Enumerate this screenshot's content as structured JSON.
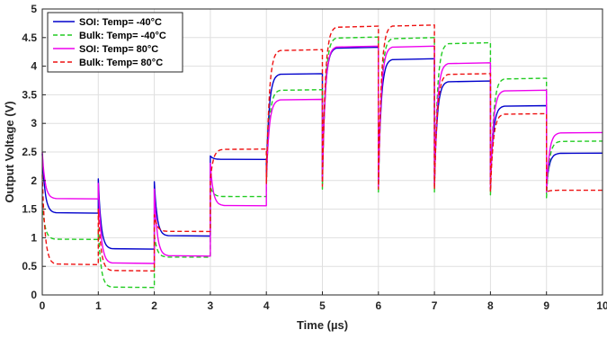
{
  "chart_data": {
    "type": "line",
    "title": "",
    "xlabel": "Time (µs)",
    "ylabel": "Output Voltage (V)",
    "xlim": [
      0,
      10
    ],
    "ylim": [
      0,
      5
    ],
    "xticks": [
      "0",
      "1",
      "2",
      "3",
      "4",
      "5",
      "6",
      "7",
      "8",
      "9",
      "10"
    ],
    "yticks": [
      "0",
      "0.5",
      "1",
      "1.5",
      "2",
      "2.5",
      "3",
      "3.5",
      "4",
      "4.5",
      "5"
    ],
    "grid": true,
    "legend_position": "top-left",
    "series": [
      {
        "name": "SOI: Temp= -40°C",
        "color": "#0000cc",
        "dash": "solid",
        "levels": [
          1.43,
          0.8,
          1.03,
          2.37,
          3.87,
          4.33,
          4.13,
          3.74,
          3.31,
          2.48
        ],
        "spikes": [
          2.47,
          2.03,
          1.98,
          2.43,
          2.13,
          2.03,
          1.98,
          1.95,
          1.93,
          1.88
        ]
      },
      {
        "name": "Bulk: Temp= -40°C",
        "color": "#22cc22",
        "dash": "dashed",
        "levels": [
          0.97,
          0.13,
          0.66,
          1.72,
          3.59,
          4.51,
          4.5,
          4.41,
          3.79,
          2.69
        ],
        "spikes": [
          1.6,
          1.15,
          1.05,
          1.9,
          1.9,
          1.85,
          1.8,
          1.8,
          1.75,
          1.7
        ]
      },
      {
        "name": "SOI: Temp= 80°C",
        "color": "#ee00ee",
        "dash": "solid",
        "levels": [
          1.68,
          0.55,
          0.68,
          1.56,
          3.42,
          4.35,
          4.35,
          4.06,
          3.58,
          2.84
        ],
        "spikes": [
          2.5,
          1.95,
          1.85,
          2.3,
          2.0,
          2.0,
          1.9,
          1.9,
          1.85,
          1.8
        ]
      },
      {
        "name": "Bulk: Temp= 80°C",
        "color": "#ee1111",
        "dash": "dashed",
        "levels": [
          0.53,
          0.42,
          1.11,
          2.55,
          4.29,
          4.7,
          4.72,
          3.87,
          3.17,
          1.83
        ],
        "spikes": [
          2.1,
          1.5,
          1.4,
          2.0,
          1.95,
          1.9,
          1.85,
          1.85,
          1.8,
          1.8
        ]
      }
    ]
  }
}
